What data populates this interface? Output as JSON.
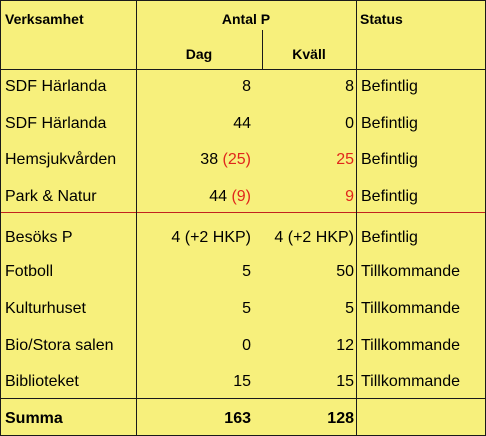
{
  "headers": {
    "verksamhet": "Verksamhet",
    "antal_p": "Antal P",
    "status": "Status",
    "dag": "Dag",
    "kvall": "Kväll"
  },
  "rows": [
    {
      "name": "SDF Härlanda",
      "dag": "8",
      "dag_extra": "",
      "kvall": "8",
      "status": "Befintlig"
    },
    {
      "name": "SDF Härlanda",
      "dag": "44",
      "dag_extra": "",
      "kvall": "0",
      "status": "Befintlig"
    },
    {
      "name": "Hemsjukvården",
      "dag": "38",
      "dag_extra": "(25)",
      "kvall": "25",
      "status": "Befintlig"
    },
    {
      "name": "Park & Natur",
      "dag": "44",
      "dag_extra": "(9)",
      "kvall": "9",
      "status": "Befintlig"
    },
    {
      "name": "Besöks P",
      "dag": "4 (+2 HKP)",
      "dag_extra": "",
      "kvall": "4 (+2 HKP)",
      "status": "Befintlig"
    },
    {
      "name": "Fotboll",
      "dag": "5",
      "dag_extra": "",
      "kvall": "50",
      "status": "Tillkommande"
    },
    {
      "name": "Kulturhuset",
      "dag": "5",
      "dag_extra": "",
      "kvall": "5",
      "status": "Tillkommande"
    },
    {
      "name": "Bio/Stora salen",
      "dag": "0",
      "dag_extra": "",
      "kvall": "12",
      "status": "Tillkommande"
    },
    {
      "name": "Biblioteket",
      "dag": "15",
      "dag_extra": "",
      "kvall": "15",
      "status": "Tillkommande"
    }
  ],
  "summa": {
    "label": "Summa",
    "dag": "163",
    "kvall": "128"
  },
  "colors": {
    "background": "#f7f07c",
    "highlight_text": "#e0261c",
    "separator": "#c2241f"
  }
}
